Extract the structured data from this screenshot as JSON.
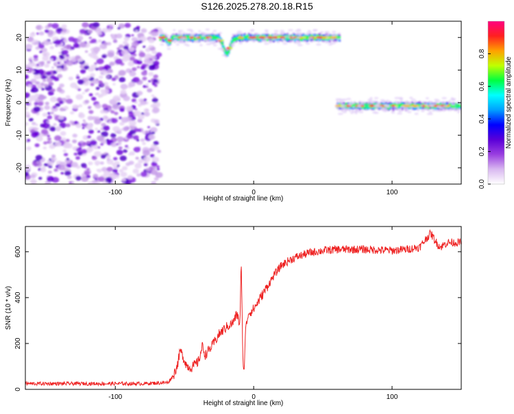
{
  "title": "S126.2025.278.20.18.R15",
  "chart_data": [
    {
      "type": "heatmap",
      "name": "spectrogram",
      "xlabel": "Height of straight line (km)",
      "ylabel": "Frequency (Hz)",
      "xlim": [
        -165,
        150
      ],
      "ylim": [
        -25,
        25
      ],
      "xticks": [
        -100,
        0,
        100
      ],
      "yticks": [
        20,
        10,
        0,
        -10,
        -20
      ],
      "colorbar": {
        "label": "Normalized spectral amplitude",
        "range": [
          0.0,
          1.0
        ],
        "ticks": [
          0.0,
          0.2,
          0.4,
          0.6,
          0.8
        ],
        "colors": [
          "#ffffff",
          "#d9b8f0",
          "#9a3fe0",
          "#5a00d8",
          "#0000ff",
          "#00a0ff",
          "#00ffff",
          "#00ff40",
          "#c0ff00",
          "#ffa000",
          "#ff2020",
          "#ff0080"
        ]
      },
      "regions": [
        {
          "name": "noise",
          "x_range": [
            -165,
            -68
          ],
          "freq_range": [
            -25,
            24
          ],
          "amplitude": 0.15
        },
        {
          "name": "tone-upper",
          "x_range": [
            -68,
            62
          ],
          "frequency": 20,
          "dip": {
            "x": -20,
            "frequency": 15
          },
          "amplitude": 0.85
        },
        {
          "name": "tone-lower",
          "x_range": [
            60,
            150
          ],
          "frequency": -1,
          "amplitude": 0.85
        }
      ]
    },
    {
      "type": "line",
      "name": "snr",
      "xlabel": "Height of straight line (km)",
      "ylabel": "SNR (10 * v/v)",
      "xlim": [
        -165,
        150
      ],
      "ylim": [
        0,
        710
      ],
      "xticks": [
        -100,
        0,
        100
      ],
      "yticks": [
        0,
        200,
        400,
        600
      ],
      "color": "#ee2222",
      "series": [
        {
          "name": "SNR",
          "x": [
            -165,
            -120,
            -80,
            -62,
            -58,
            -55,
            -53,
            -51,
            -48,
            -45,
            -40,
            -37,
            -35,
            -30,
            -25,
            -20,
            -15,
            -12,
            -10,
            -9,
            -8,
            -7,
            -6,
            -4,
            0,
            5,
            10,
            15,
            20,
            25,
            30,
            40,
            50,
            60,
            80,
            100,
            110,
            120,
            125,
            128,
            132,
            135,
            140,
            150
          ],
          "y": [
            25,
            25,
            25,
            30,
            60,
            110,
            170,
            140,
            100,
            95,
            120,
            190,
            150,
            190,
            240,
            270,
            290,
            330,
            280,
            560,
            180,
            60,
            250,
            330,
            350,
            400,
            450,
            500,
            540,
            560,
            575,
            595,
            605,
            610,
            610,
            605,
            610,
            620,
            660,
            680,
            640,
            620,
            640,
            640
          ]
        }
      ]
    }
  ]
}
